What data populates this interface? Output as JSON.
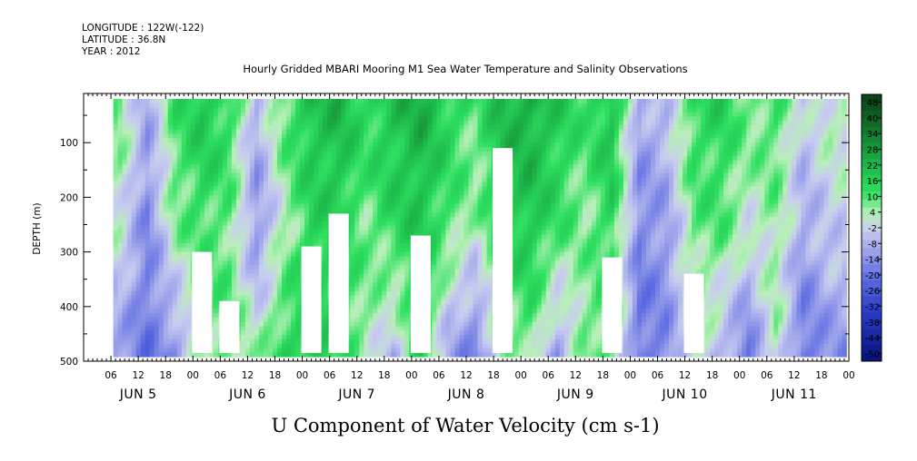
{
  "header": {
    "longitude": "LONGITUDE : 122W(-122)",
    "latitude": "LATITUDE : 36.8N",
    "year": "YEAR : 2012",
    "title": "Hourly Gridded MBARI Mooring M1 Sea Water Temperature and Salinity Observations"
  },
  "chart_data": {
    "type": "heatmap",
    "title": "U Component of Water Velocity (cm s-1)",
    "ylabel": "DEPTH (m)",
    "y_axis": {
      "range": [
        500,
        10
      ],
      "ticks": [
        "100",
        "200",
        "300",
        "400",
        "500"
      ],
      "inverted": true
    },
    "x_axis": {
      "range_hours": [
        0,
        168
      ],
      "hour_ticks": [
        "06",
        "12",
        "18",
        "00",
        "06",
        "12",
        "18",
        "00",
        "06",
        "12",
        "18",
        "00",
        "06",
        "12",
        "18",
        "00",
        "06",
        "12",
        "18",
        "00",
        "06",
        "12",
        "18",
        "00",
        "06",
        "12",
        "18",
        "00"
      ],
      "day_labels": [
        "JUN  5",
        "JUN  6",
        "JUN  7",
        "JUN  8",
        "JUN  9",
        "JUN 10",
        "JUN 11"
      ]
    },
    "colorbar": {
      "labels": [
        "48",
        "40",
        "34",
        "28",
        "22",
        "16",
        "10",
        "4",
        "-2",
        "-8",
        "-14",
        "-20",
        "-26",
        "-32",
        "-38",
        "-44",
        "-50"
      ],
      "range": [
        -50,
        48
      ],
      "stops": [
        {
          "v": 48,
          "color": "#0b3d17"
        },
        {
          "v": 34,
          "color": "#137a2c"
        },
        {
          "v": 22,
          "color": "#1db84a"
        },
        {
          "v": 12,
          "color": "#2ee060"
        },
        {
          "v": 4,
          "color": "#b8f0b8"
        },
        {
          "v": -2,
          "color": "#c8ccf0"
        },
        {
          "v": -10,
          "color": "#9aa0ea"
        },
        {
          "v": -20,
          "color": "#5a6ae0"
        },
        {
          "v": -32,
          "color": "#2a3cc8"
        },
        {
          "v": -50,
          "color": "#06127a"
        }
      ]
    },
    "data_hours": [
      6.5,
      167
    ],
    "data_depth": [
      20,
      485
    ],
    "columns": [
      {
        "h": 8,
        "mid": 2,
        "low": -10,
        "gap": null
      },
      {
        "h": 14,
        "mid": -14,
        "low": -18,
        "gap": null
      },
      {
        "h": 20,
        "mid": 6,
        "low": -12,
        "gap": null
      },
      {
        "h": 26,
        "mid": 12,
        "low": 6,
        "gap": [
          300,
          485
        ]
      },
      {
        "h": 32,
        "mid": 8,
        "low": 10,
        "gap": [
          390,
          485
        ]
      },
      {
        "h": 38,
        "mid": -12,
        "low": 4,
        "gap": null
      },
      {
        "h": 44,
        "mid": 4,
        "low": 14,
        "gap": null
      },
      {
        "h": 50,
        "mid": 14,
        "low": 18,
        "gap": [
          290,
          485
        ]
      },
      {
        "h": 56,
        "mid": 16,
        "low": 12,
        "gap": [
          230,
          485
        ]
      },
      {
        "h": 62,
        "mid": 8,
        "low": 6,
        "gap": null
      },
      {
        "h": 68,
        "mid": 14,
        "low": -6,
        "gap": null
      },
      {
        "h": 74,
        "mid": 18,
        "low": 16,
        "gap": [
          270,
          485
        ]
      },
      {
        "h": 80,
        "mid": 10,
        "low": -8,
        "gap": null
      },
      {
        "h": 86,
        "mid": 4,
        "low": -16,
        "gap": null
      },
      {
        "h": 92,
        "mid": 16,
        "low": 4,
        "gap": [
          110,
          485
        ]
      },
      {
        "h": 98,
        "mid": 18,
        "low": 8,
        "gap": null
      },
      {
        "h": 104,
        "mid": 12,
        "low": -10,
        "gap": null
      },
      {
        "h": 110,
        "mid": 6,
        "low": 8,
        "gap": null
      },
      {
        "h": 116,
        "mid": 14,
        "low": 10,
        "gap": [
          310,
          485
        ]
      },
      {
        "h": 122,
        "mid": -14,
        "low": -18,
        "gap": null
      },
      {
        "h": 128,
        "mid": -10,
        "low": -14,
        "gap": null
      },
      {
        "h": 134,
        "mid": 8,
        "low": 4,
        "gap": [
          340,
          485
        ]
      },
      {
        "h": 140,
        "mid": 10,
        "low": -6,
        "gap": null
      },
      {
        "h": 146,
        "mid": 2,
        "low": -16,
        "gap": null
      },
      {
        "h": 152,
        "mid": 6,
        "low": 4,
        "gap": null
      },
      {
        "h": 158,
        "mid": -8,
        "low": -18,
        "gap": null
      },
      {
        "h": 164,
        "mid": -2,
        "low": -12,
        "gap": null
      }
    ]
  }
}
